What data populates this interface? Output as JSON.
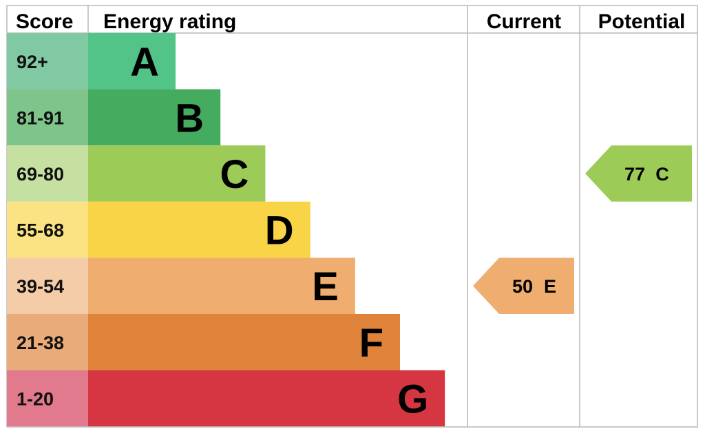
{
  "headers": {
    "score": "Score",
    "rating": "Energy rating",
    "current": "Current",
    "potential": "Potential"
  },
  "chart_data": {
    "type": "bar",
    "title": "",
    "bands": [
      {
        "letter": "A",
        "score_range": "92+",
        "min": 92,
        "max": 100,
        "bar_color": "#52c487",
        "score_color": "#80c9a3"
      },
      {
        "letter": "B",
        "score_range": "81-91",
        "min": 81,
        "max": 91,
        "bar_color": "#45ab5e",
        "score_color": "#7fc48a"
      },
      {
        "letter": "C",
        "score_range": "69-80",
        "min": 69,
        "max": 80,
        "bar_color": "#9dcb58",
        "score_color": "#c5e0a0"
      },
      {
        "letter": "D",
        "score_range": "55-68",
        "min": 55,
        "max": 68,
        "bar_color": "#f8d446",
        "score_color": "#fbe384"
      },
      {
        "letter": "E",
        "score_range": "39-54",
        "min": 39,
        "max": 54,
        "bar_color": "#efad6f",
        "score_color": "#f5cca8"
      },
      {
        "letter": "F",
        "score_range": "21-38",
        "min": 21,
        "max": 38,
        "bar_color": "#e0833a",
        "score_color": "#e9ab7a"
      },
      {
        "letter": "G",
        "score_range": "1-20",
        "min": 1,
        "max": 20,
        "bar_color": "#d63542",
        "score_color": "#e07a8c"
      }
    ],
    "current": {
      "value": 50,
      "band": "E",
      "color": "#efad6f"
    },
    "potential": {
      "value": 77,
      "band": "C",
      "color": "#9dcb58"
    }
  }
}
